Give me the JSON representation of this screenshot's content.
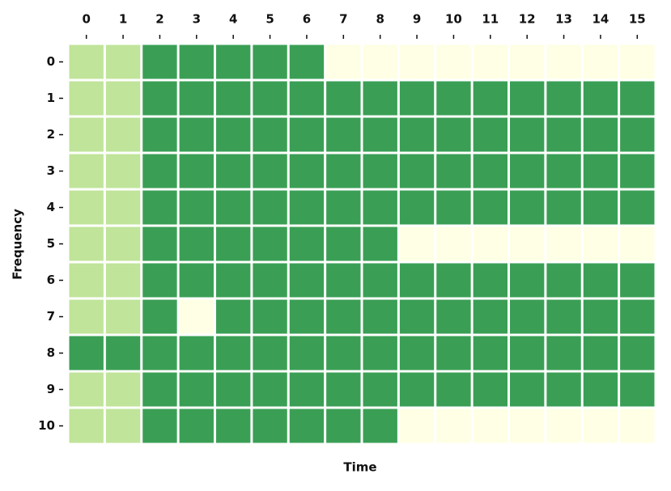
{
  "chart_data": {
    "type": "heatmap",
    "x_label": "Time",
    "y_label": "Frequency",
    "x": [
      0,
      1,
      2,
      3,
      4,
      5,
      6,
      7,
      8,
      9,
      10,
      11,
      12,
      13,
      14,
      15
    ],
    "y": [
      0,
      1,
      2,
      3,
      4,
      5,
      6,
      7,
      8,
      9,
      10
    ],
    "values": [
      [
        1,
        1,
        2,
        2,
        2,
        2,
        2,
        0,
        0,
        0,
        0,
        0,
        0,
        0,
        0,
        0
      ],
      [
        1,
        1,
        2,
        2,
        2,
        2,
        2,
        2,
        2,
        2,
        2,
        2,
        2,
        2,
        2,
        2
      ],
      [
        1,
        1,
        2,
        2,
        2,
        2,
        2,
        2,
        2,
        2,
        2,
        2,
        2,
        2,
        2,
        2
      ],
      [
        1,
        1,
        2,
        2,
        2,
        2,
        2,
        2,
        2,
        2,
        2,
        2,
        2,
        2,
        2,
        2
      ],
      [
        1,
        1,
        2,
        2,
        2,
        2,
        2,
        2,
        2,
        2,
        2,
        2,
        2,
        2,
        2,
        2
      ],
      [
        1,
        1,
        2,
        2,
        2,
        2,
        2,
        2,
        2,
        0,
        0,
        0,
        0,
        0,
        0,
        0
      ],
      [
        1,
        1,
        2,
        2,
        2,
        2,
        2,
        2,
        2,
        2,
        2,
        2,
        2,
        2,
        2,
        2
      ],
      [
        1,
        1,
        2,
        0,
        2,
        2,
        2,
        2,
        2,
        2,
        2,
        2,
        2,
        2,
        2,
        2
      ],
      [
        2,
        2,
        2,
        2,
        2,
        2,
        2,
        2,
        2,
        2,
        2,
        2,
        2,
        2,
        2,
        2
      ],
      [
        1,
        1,
        2,
        2,
        2,
        2,
        2,
        2,
        2,
        2,
        2,
        2,
        2,
        2,
        2,
        2
      ],
      [
        1,
        1,
        2,
        2,
        2,
        2,
        2,
        2,
        2,
        0,
        0,
        0,
        0,
        0,
        0,
        0
      ]
    ],
    "vlim": [
      0,
      2
    ],
    "colorscale": [
      "#ffffe5",
      "#c0e49a",
      "#3a9f55"
    ]
  }
}
